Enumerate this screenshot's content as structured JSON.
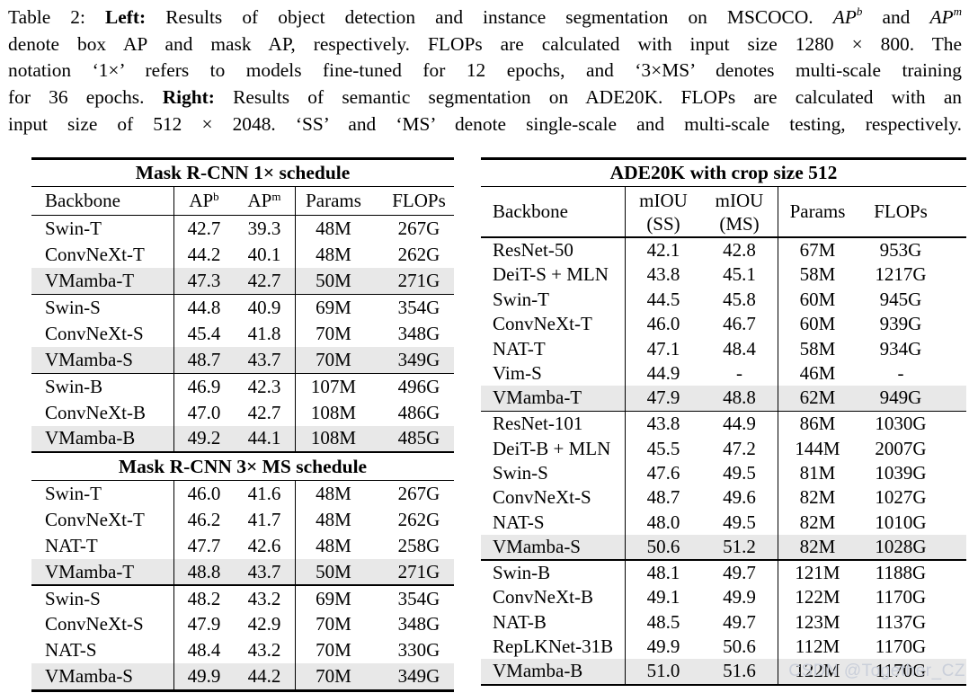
{
  "caption": {
    "line1": {
      "prefix": "Table 2: ",
      "bold_label": "Left:",
      "text_a": " Results of object detection and instance segmentation on MSCOCO. ",
      "math_ap1": "AP",
      "math_ap1_sup": "b",
      "text_b": " and ",
      "math_ap2": "AP",
      "math_ap2_sup": "m"
    },
    "line2": "denote box AP and mask AP, respectively. FLOPs are calculated with input size 1280 × 800. The",
    "line3": "notation ‘1×’ refers to models fine-tuned for 12 epochs, and ‘3×MS’ denotes multi-scale training",
    "line4": {
      "prefix": "for 36 epochs. ",
      "bold_label": "Right:",
      "text": " Results of semantic segmentation on ADE20K. FLOPs are calculated with an"
    },
    "line5": "input size of 512 × 2048. ‘SS’ and ‘MS’ denote single-scale and multi-scale testing, respectively."
  },
  "left_table": {
    "title_1x": "Mask R-CNN 1× schedule",
    "title_3x": "Mask R-CNN 3× MS schedule",
    "header": {
      "backbone": "Backbone",
      "ap": "AP",
      "ap_box_sup": "b",
      "ap_mask_sup": "m",
      "params": "Params",
      "flops": "FLOPs"
    },
    "groups_1x": [
      [
        {
          "backbone": "Swin-T",
          "ap_b": "42.7",
          "ap_m": "39.3",
          "params": "48M",
          "flops": "267G",
          "highlight": false
        },
        {
          "backbone": "ConvNeXt-T",
          "ap_b": "44.2",
          "ap_m": "40.1",
          "params": "48M",
          "flops": "262G",
          "highlight": false
        },
        {
          "backbone": "VMamba-T",
          "ap_b": "47.3",
          "ap_m": "42.7",
          "params": "50M",
          "flops": "271G",
          "highlight": true
        }
      ],
      [
        {
          "backbone": "Swin-S",
          "ap_b": "44.8",
          "ap_m": "40.9",
          "params": "69M",
          "flops": "354G",
          "highlight": false
        },
        {
          "backbone": "ConvNeXt-S",
          "ap_b": "45.4",
          "ap_m": "41.8",
          "params": "70M",
          "flops": "348G",
          "highlight": false
        },
        {
          "backbone": "VMamba-S",
          "ap_b": "48.7",
          "ap_m": "43.7",
          "params": "70M",
          "flops": "349G",
          "highlight": true
        }
      ],
      [
        {
          "backbone": "Swin-B",
          "ap_b": "46.9",
          "ap_m": "42.3",
          "params": "107M",
          "flops": "496G",
          "highlight": false
        },
        {
          "backbone": "ConvNeXt-B",
          "ap_b": "47.0",
          "ap_m": "42.7",
          "params": "108M",
          "flops": "486G",
          "highlight": false
        },
        {
          "backbone": "VMamba-B",
          "ap_b": "49.2",
          "ap_m": "44.1",
          "params": "108M",
          "flops": "485G",
          "highlight": true
        }
      ]
    ],
    "groups_3x": [
      [
        {
          "backbone": "Swin-T",
          "ap_b": "46.0",
          "ap_m": "41.6",
          "params": "48M",
          "flops": "267G",
          "highlight": false
        },
        {
          "backbone": "ConvNeXt-T",
          "ap_b": "46.2",
          "ap_m": "41.7",
          "params": "48M",
          "flops": "262G",
          "highlight": false
        },
        {
          "backbone": "NAT-T",
          "ap_b": "47.7",
          "ap_m": "42.6",
          "params": "48M",
          "flops": "258G",
          "highlight": false
        },
        {
          "backbone": "VMamba-T",
          "ap_b": "48.8",
          "ap_m": "43.7",
          "params": "50M",
          "flops": "271G",
          "highlight": true
        }
      ],
      [
        {
          "backbone": "Swin-S",
          "ap_b": "48.2",
          "ap_m": "43.2",
          "params": "69M",
          "flops": "354G",
          "highlight": false
        },
        {
          "backbone": "ConvNeXt-S",
          "ap_b": "47.9",
          "ap_m": "42.9",
          "params": "70M",
          "flops": "348G",
          "highlight": false
        },
        {
          "backbone": "NAT-S",
          "ap_b": "48.4",
          "ap_m": "43.2",
          "params": "70M",
          "flops": "330G",
          "highlight": false
        },
        {
          "backbone": "VMamba-S",
          "ap_b": "49.9",
          "ap_m": "44.2",
          "params": "70M",
          "flops": "349G",
          "highlight": true
        }
      ]
    ]
  },
  "right_table": {
    "title": "ADE20K with crop size 512",
    "header": {
      "backbone": "Backbone",
      "miou": "mIOU",
      "ss": "(SS)",
      "ms": "(MS)",
      "params": "Params",
      "flops": "FLOPs"
    },
    "groups": [
      [
        {
          "backbone": "ResNet-50",
          "miou_ss": "42.1",
          "miou_ms": "42.8",
          "params": "67M",
          "flops": "953G",
          "highlight": false
        },
        {
          "backbone": "DeiT-S + MLN",
          "miou_ss": "43.8",
          "miou_ms": "45.1",
          "params": "58M",
          "flops": "1217G",
          "highlight": false
        },
        {
          "backbone": "Swin-T",
          "miou_ss": "44.5",
          "miou_ms": "45.8",
          "params": "60M",
          "flops": "945G",
          "highlight": false
        },
        {
          "backbone": "ConvNeXt-T",
          "miou_ss": "46.0",
          "miou_ms": "46.7",
          "params": "60M",
          "flops": "939G",
          "highlight": false
        },
        {
          "backbone": "NAT-T",
          "miou_ss": "47.1",
          "miou_ms": "48.4",
          "params": "58M",
          "flops": "934G",
          "highlight": false
        },
        {
          "backbone": "Vim-S",
          "miou_ss": "44.9",
          "miou_ms": "-",
          "params": "46M",
          "flops": "-",
          "highlight": false
        },
        {
          "backbone": "VMamba-T",
          "miou_ss": "47.9",
          "miou_ms": "48.8",
          "params": "62M",
          "flops": "949G",
          "highlight": true
        }
      ],
      [
        {
          "backbone": "ResNet-101",
          "miou_ss": "43.8",
          "miou_ms": "44.9",
          "params": "86M",
          "flops": "1030G",
          "highlight": false
        },
        {
          "backbone": "DeiT-B + MLN",
          "miou_ss": "45.5",
          "miou_ms": "47.2",
          "params": "144M",
          "flops": "2007G",
          "highlight": false
        },
        {
          "backbone": "Swin-S",
          "miou_ss": "47.6",
          "miou_ms": "49.5",
          "params": "81M",
          "flops": "1039G",
          "highlight": false
        },
        {
          "backbone": "ConvNeXt-S",
          "miou_ss": "48.7",
          "miou_ms": "49.6",
          "params": "82M",
          "flops": "1027G",
          "highlight": false
        },
        {
          "backbone": "NAT-S",
          "miou_ss": "48.0",
          "miou_ms": "49.5",
          "params": "82M",
          "flops": "1010G",
          "highlight": false
        },
        {
          "backbone": "VMamba-S",
          "miou_ss": "50.6",
          "miou_ms": "51.2",
          "params": "82M",
          "flops": "1028G",
          "highlight": true
        }
      ],
      [
        {
          "backbone": "Swin-B",
          "miou_ss": "48.1",
          "miou_ms": "49.7",
          "params": "121M",
          "flops": "1188G",
          "highlight": false
        },
        {
          "backbone": "ConvNeXt-B",
          "miou_ss": "49.1",
          "miou_ms": "49.9",
          "params": "122M",
          "flops": "1170G",
          "highlight": false
        },
        {
          "backbone": "NAT-B",
          "miou_ss": "48.5",
          "miou_ms": "49.7",
          "params": "123M",
          "flops": "1137G",
          "highlight": false
        },
        {
          "backbone": "RepLKNet-31B",
          "miou_ss": "49.9",
          "miou_ms": "50.6",
          "params": "112M",
          "flops": "1170G",
          "highlight": false
        },
        {
          "backbone": "VMamba-B",
          "miou_ss": "51.0",
          "miou_ms": "51.6",
          "params": "122M",
          "flops": "1170G",
          "highlight": true
        }
      ]
    ]
  },
  "watermark": {
    "text": "CSDN @Together_CZ"
  },
  "colors": {
    "highlight_row": "#e8e8e8",
    "rule": "#000000",
    "text": "#000000",
    "background": "#ffffff",
    "watermark": "#cacfda"
  }
}
